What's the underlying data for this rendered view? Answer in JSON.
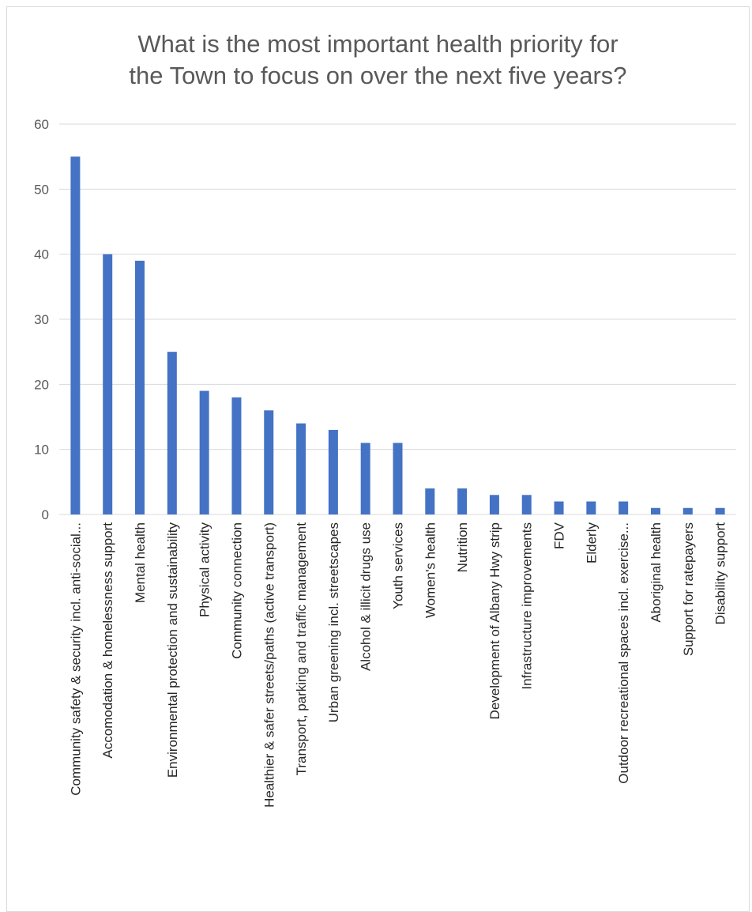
{
  "chart_data": {
    "type": "bar",
    "title_lines": [
      "What is the most important health priority for",
      "the Town to focus on over the next five years?"
    ],
    "categories": [
      "Community safety & security incl. anti-social...",
      "Accomodation & homelessness support",
      "Mental health",
      "Environmental protection and sustainability",
      "Physical activity",
      "Community connection",
      "Healthier & safer streets/paths (active transport)",
      "Transport, parking and traffic management",
      "Urban greening incl. streetscapes",
      "Alcohol & illicit drugs use",
      "Youth services",
      "Women's health",
      "Nutrition",
      "Development of Albany Hwy strip",
      "Infrastructure improvements",
      "FDV",
      "Elderly",
      "Outdoor recreational spaces incl. exercise...",
      "Aboriginal health",
      "Support for ratepayers",
      "Disability support"
    ],
    "values": [
      55,
      40,
      39,
      25,
      19,
      18,
      16,
      14,
      13,
      11,
      11,
      4,
      4,
      3,
      3,
      2,
      2,
      2,
      1,
      1,
      1
    ],
    "ylim": [
      0,
      60
    ],
    "yticks": [
      "0",
      "10",
      "20",
      "30",
      "40",
      "50",
      "60"
    ],
    "grid": true,
    "legend": "none",
    "colors": {
      "bar": "#4472c4",
      "grid": "#d9d9d9",
      "axis_text": "#595959"
    }
  }
}
